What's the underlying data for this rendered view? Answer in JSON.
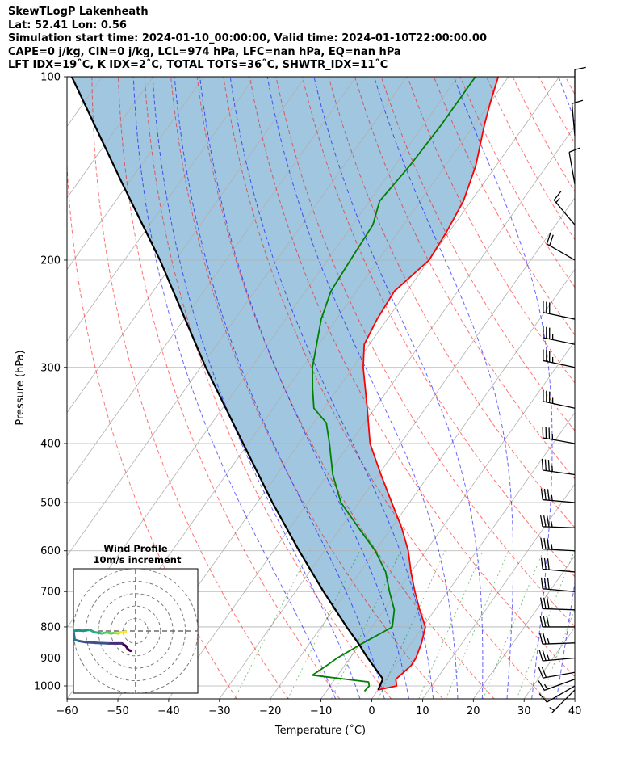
{
  "header": {
    "lines": [
      "SkewTLogP Lakenheath",
      "Lat: 52.41   Lon: 0.56",
      "Simulation start time: 2024-01-10_00:00:00, Valid time: 2024-01-10T22:00:00.00",
      "CAPE=0 j/kg, CIN=0 j/kg, LCL=974 hPa, LFC=nan hPa, EQ=nan hPa",
      "LFT IDX=19˚C, K IDX=2˚C, TOTAL TOTS=36˚C, SHWTR_IDX=11˚C"
    ]
  },
  "chart_data": [
    {
      "type": "skewt-logp",
      "xlabel": "Temperature (˚C)",
      "ylabel": "Pressure (hPa)",
      "xlim": [
        -60,
        40
      ],
      "ylim": [
        1050,
        100
      ],
      "y_scale": "log",
      "x_ticks": [
        -60,
        -50,
        -40,
        -30,
        -20,
        -10,
        0,
        10,
        20,
        30,
        40
      ],
      "x_tick_labels": [
        "−60",
        "−50",
        "−40",
        "−30",
        "−20",
        "−10",
        "0",
        "10",
        "20",
        "30",
        "40"
      ],
      "y_ticks": [
        1000,
        900,
        800,
        700,
        600,
        500,
        400,
        300,
        200,
        100
      ],
      "y_tick_labels": [
        "1000",
        "900",
        "800",
        "700",
        "600",
        "500",
        "400",
        "300",
        "200",
        "100"
      ],
      "grid": true,
      "series": [
        {
          "name": "",
          "role": "temperature",
          "color": "#ff0000",
          "points": [
            [
              1015,
              0.0
            ],
            [
              1000,
              3.1
            ],
            [
              975,
              2.0
            ],
            [
              950,
              2.6
            ],
            [
              925,
              3.1
            ],
            [
              900,
              3.0
            ],
            [
              850,
              2.0
            ],
            [
              800,
              0.5
            ],
            [
              750,
              -3.0
            ],
            [
              700,
              -6.5
            ],
            [
              650,
              -10.0
            ],
            [
              600,
              -13.5
            ],
            [
              550,
              -18.0
            ],
            [
              500,
              -23.5
            ],
            [
              450,
              -29.5
            ],
            [
              400,
              -36.0
            ],
            [
              350,
              -41.5
            ],
            [
              300,
              -48.0
            ],
            [
              275,
              -51.0
            ],
            [
              250,
              -52.0
            ],
            [
              225,
              -52.5
            ],
            [
              200,
              -50.0
            ],
            [
              180,
              -50.5
            ],
            [
              160,
              -51.5
            ],
            [
              140,
              -54.0
            ],
            [
              120,
              -58.0
            ],
            [
              110,
              -60.0
            ],
            [
              100,
              -62.0
            ]
          ]
        },
        {
          "name": "",
          "role": "dewpoint",
          "color": "#008000",
          "points": [
            [
              1020,
              -2.5
            ],
            [
              1000,
              -2.3
            ],
            [
              985,
              -3.0
            ],
            [
              960,
              -15.0
            ],
            [
              920,
              -13.3
            ],
            [
              900,
              -12.5
            ],
            [
              850,
              -9.5
            ],
            [
              800,
              -6.0
            ],
            [
              750,
              -8.0
            ],
            [
              700,
              -11.5
            ],
            [
              650,
              -15.0
            ],
            [
              600,
              -20.0
            ],
            [
              550,
              -26.5
            ],
            [
              500,
              -33.5
            ],
            [
              450,
              -39.0
            ],
            [
              400,
              -44.0
            ],
            [
              370,
              -47.5
            ],
            [
              350,
              -52.0
            ],
            [
              325,
              -55.0
            ],
            [
              300,
              -58.0
            ],
            [
              250,
              -63.0
            ],
            [
              225,
              -65.0
            ],
            [
              200,
              -65.5
            ],
            [
              175,
              -66.0
            ],
            [
              160,
              -68.0
            ],
            [
              140,
              -67.0
            ],
            [
              120,
              -66.5
            ],
            [
              100,
              -66.5
            ]
          ]
        },
        {
          "name": "",
          "role": "parcel-profile",
          "color": "#000000",
          "points": [
            [
              1015,
              0.0
            ],
            [
              974,
              -0.6
            ],
            [
              900,
              -6.5
            ],
            [
              850,
              -10.5
            ],
            [
              800,
              -15.0
            ],
            [
              700,
              -24.5
            ],
            [
              600,
              -35.0
            ],
            [
              500,
              -47.0
            ],
            [
              400,
              -61.0
            ],
            [
              300,
              -79.0
            ],
            [
              200,
              -103.0
            ],
            [
              150,
              -121.0
            ],
            [
              100,
              -146.0
            ]
          ]
        }
      ],
      "fill": {
        "between": [
          "parcel-profile",
          "temperature"
        ],
        "color": "#a1c6df"
      }
    },
    {
      "type": "wind-barbs",
      "units": "kt",
      "barbs": [
        {
          "p": 1015,
          "speed": 5,
          "dir": 225
        },
        {
          "p": 1000,
          "speed": 10,
          "dir": 240
        },
        {
          "p": 975,
          "speed": 15,
          "dir": 250
        },
        {
          "p": 950,
          "speed": 20,
          "dir": 260
        },
        {
          "p": 900,
          "speed": 25,
          "dir": 265
        },
        {
          "p": 850,
          "speed": 25,
          "dir": 268
        },
        {
          "p": 800,
          "speed": 30,
          "dir": 270
        },
        {
          "p": 750,
          "speed": 30,
          "dir": 272
        },
        {
          "p": 700,
          "speed": 30,
          "dir": 275
        },
        {
          "p": 650,
          "speed": 30,
          "dir": 275
        },
        {
          "p": 600,
          "speed": 35,
          "dir": 273
        },
        {
          "p": 550,
          "speed": 35,
          "dir": 272
        },
        {
          "p": 500,
          "speed": 35,
          "dir": 275
        },
        {
          "p": 450,
          "speed": 35,
          "dir": 278
        },
        {
          "p": 400,
          "speed": 35,
          "dir": 280
        },
        {
          "p": 350,
          "speed": 35,
          "dir": 282
        },
        {
          "p": 300,
          "speed": 35,
          "dir": 282
        },
        {
          "p": 275,
          "speed": 35,
          "dir": 282
        },
        {
          "p": 250,
          "speed": 30,
          "dir": 282
        },
        {
          "p": 200,
          "speed": 20,
          "dir": 300
        },
        {
          "p": 175,
          "speed": 15,
          "dir": 320
        },
        {
          "p": 150,
          "speed": 10,
          "dir": 350
        },
        {
          "p": 125,
          "speed": 10,
          "dir": 355
        },
        {
          "p": 110,
          "speed": 10,
          "dir": 360
        }
      ]
    },
    {
      "type": "hodograph",
      "title": "Wind Profile",
      "subtitle": "10m/s increment",
      "ring_spacing": 10,
      "xlim": [
        -50,
        50
      ],
      "ylim": [
        -50,
        50
      ],
      "colormap": "viridis",
      "points": [
        [
          -4.0,
          -16.0
        ],
        [
          -6.0,
          -15.0
        ],
        [
          -8.0,
          -12.0
        ],
        [
          -11.0,
          -10.0
        ],
        [
          -15.0,
          -10.0
        ],
        [
          -22.0,
          -10.0
        ],
        [
          -32.0,
          -9.5
        ],
        [
          -40.0,
          -9.0
        ],
        [
          -46.0,
          -8.0
        ],
        [
          -49.0,
          -7.0
        ],
        [
          -50.0,
          0.0
        ],
        [
          -47.0,
          0.5
        ],
        [
          -42.0,
          0.2
        ],
        [
          -37.0,
          1.0
        ],
        [
          -33.0,
          -1.0
        ],
        [
          -27.0,
          -2.0
        ],
        [
          -23.0,
          -1.0
        ],
        [
          -20.0,
          -2.0
        ],
        [
          -17.0,
          -1.5
        ],
        [
          -14.0,
          -2.0
        ],
        [
          -12.0,
          -1.0
        ],
        [
          -10.0,
          -1.0
        ],
        [
          -8.0,
          -0.5
        ]
      ]
    }
  ]
}
